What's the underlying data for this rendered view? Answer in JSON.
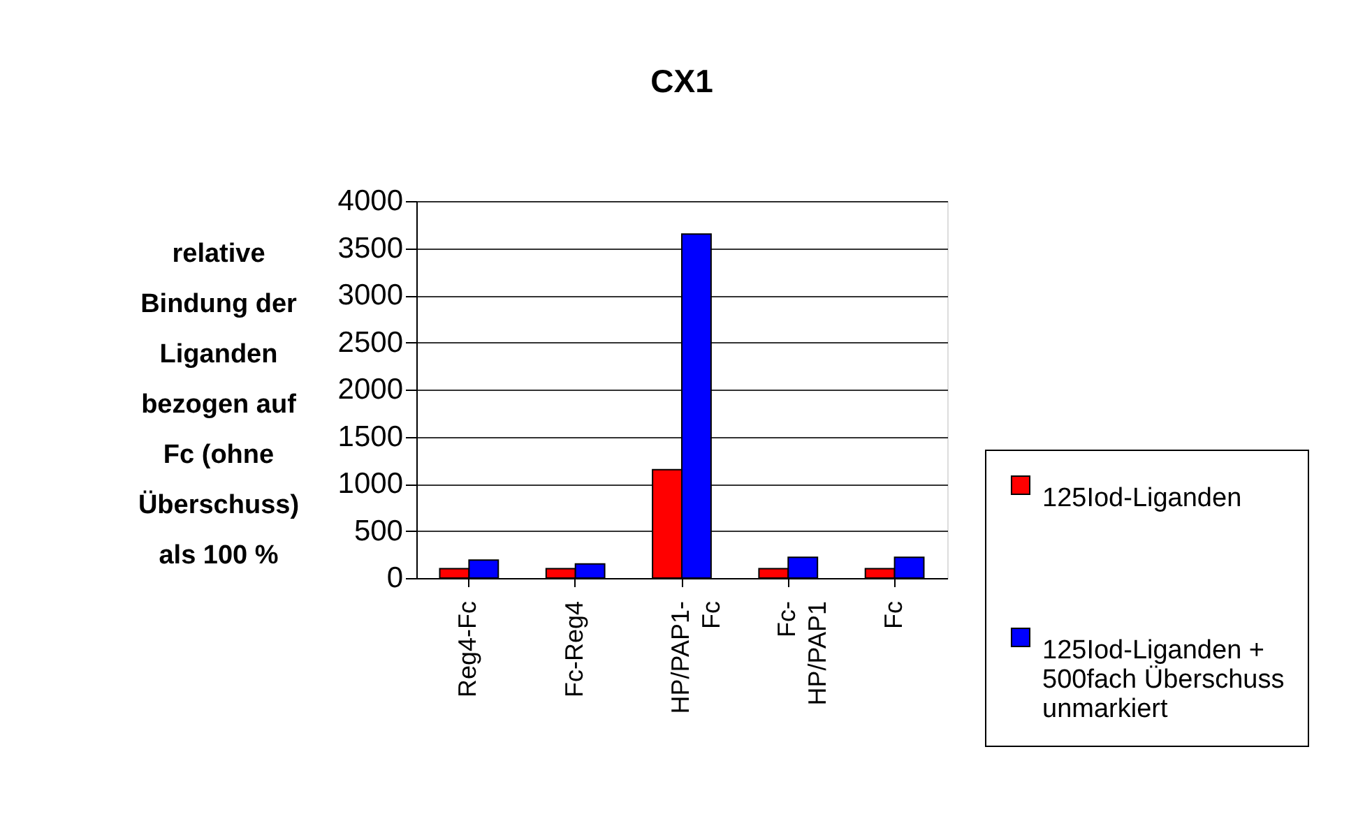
{
  "chart_data": {
    "type": "bar",
    "title": "CX1",
    "ylabel": "relative Bindung der Liganden bezogen auf Fc (ohne Überschuss) als 100 %",
    "categories": [
      "Reg4-Fc",
      "Fc-Reg4",
      "HP/PAP1-Fc",
      "Fc-HP/PAP1",
      "Fc"
    ],
    "series": [
      {
        "name": "125Iod-Liganden",
        "color": "#ff0000",
        "values": [
          100,
          100,
          1150,
          100,
          100
        ]
      },
      {
        "name": "125Iod-Liganden + 500fach Überschuss unmarkiert",
        "color": "#0000ff",
        "values": [
          190,
          150,
          3650,
          220,
          220
        ]
      }
    ],
    "ylim": [
      0,
      4000
    ],
    "yticks": [
      0,
      500,
      1000,
      1500,
      2000,
      2500,
      3000,
      3500,
      4000
    ],
    "grid": "y",
    "legend": "right"
  }
}
